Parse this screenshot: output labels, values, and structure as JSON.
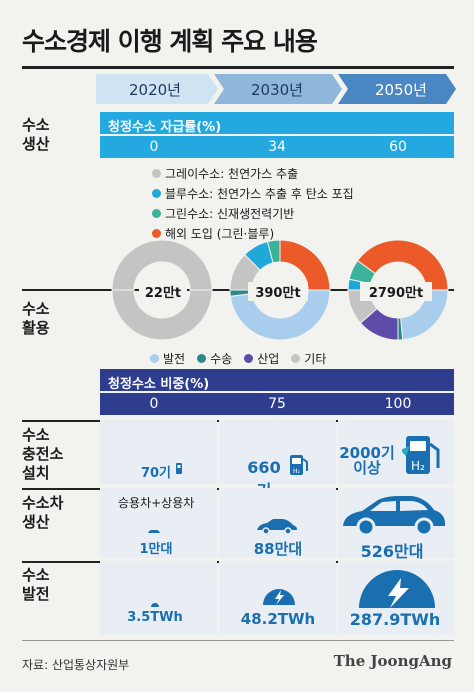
{
  "title": "수소경제 이행 계획 주요 내용",
  "years": [
    "2020년",
    "2030년",
    "2050년"
  ],
  "rows": {
    "production": "수소\n생산",
    "usage": "수소\n활용",
    "charging": "수소\n충전소\n설치",
    "vehicle": "수소차\n생산",
    "power": "수소\n발전"
  },
  "self_sufficiency": {
    "title": "청정수소 자급률(%)",
    "values": [
      "0",
      "34",
      "60"
    ]
  },
  "supply_legend": [
    {
      "label": "그레이수소: 천연가스 추출",
      "color": "#c4c4c4"
    },
    {
      "label": "블루수소: 천연가스 추출 후 탄소 포집",
      "color": "#1fa8d8"
    },
    {
      "label": "그린수소: 신재생전력기반",
      "color": "#3bb39a"
    },
    {
      "label": "해외 도입 (그린·블루)",
      "color": "#ec5a2a"
    }
  ],
  "usage_legend": [
    {
      "label": "발전",
      "color": "#a9cdec"
    },
    {
      "label": "수송",
      "color": "#2a8a88"
    },
    {
      "label": "산업",
      "color": "#5f4ba8"
    },
    {
      "label": "기타",
      "color": "#c4c4c4"
    }
  ],
  "clean_share": {
    "title": "청정수소 비중(%)",
    "values": [
      "0",
      "75",
      "100"
    ]
  },
  "charging": {
    "values": [
      "70기",
      "660기",
      "2000기\n이상"
    ]
  },
  "vehicles": {
    "note": "승용차+상용차",
    "values": [
      "1만대",
      "88만대",
      "526만대"
    ]
  },
  "power": {
    "values": [
      "3.5TWh",
      "48.2TWh",
      "287.9TWh"
    ]
  },
  "source": "자료: 산업통상자원부",
  "brand": "The JoongAng",
  "chart_data": {
    "type": "pie",
    "charts": [
      {
        "year": "2020년",
        "total_label": "22만t",
        "supply": [
          {
            "name": "그레이수소",
            "value": 100
          }
        ],
        "usage": [
          {
            "name": "발전",
            "value": 0
          },
          {
            "name": "수송",
            "value": 0
          },
          {
            "name": "산업",
            "value": 0
          },
          {
            "name": "기타",
            "value": 100
          }
        ]
      },
      {
        "year": "2030년",
        "total_label": "390만t",
        "supply": [
          {
            "name": "그레이수소",
            "value": 25
          },
          {
            "name": "블루수소",
            "value": 17
          },
          {
            "name": "그린수소",
            "value": 8
          },
          {
            "name": "해외 도입",
            "value": 50
          }
        ],
        "usage": [
          {
            "name": "발전",
            "value": 96
          },
          {
            "name": "수송",
            "value": 4
          }
        ]
      },
      {
        "year": "2050년",
        "total_label": "2790만t",
        "supply": [
          {
            "name": "블루수소",
            "value": 7
          },
          {
            "name": "그린수소",
            "value": 13
          },
          {
            "name": "해외 도입",
            "value": 80
          }
        ],
        "usage": [
          {
            "name": "발전",
            "value": 47
          },
          {
            "name": "수송",
            "value": 3
          },
          {
            "name": "산업",
            "value": 27
          },
          {
            "name": "기타",
            "value": 23
          }
        ]
      }
    ]
  }
}
